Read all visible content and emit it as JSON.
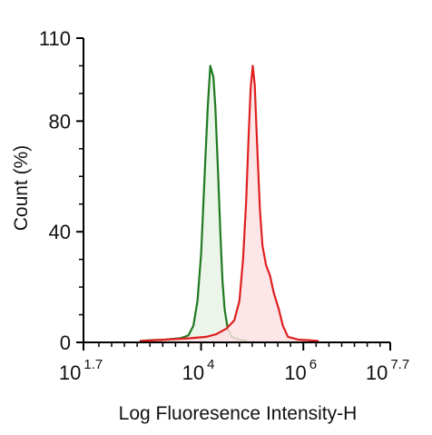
{
  "chart_data": {
    "type": "area",
    "title": "",
    "xlabel": "Log Fluoresence Intensity-H",
    "ylabel": "Count  (%)",
    "xscale": "log",
    "xlim": [
      1.7,
      7.7
    ],
    "ylim": [
      0,
      110
    ],
    "x_ticks": [
      {
        "base": "10",
        "exponent": "1.7",
        "value": 1.7
      },
      {
        "base": "10",
        "exponent": "4",
        "value": 4
      },
      {
        "base": "10",
        "exponent": "6",
        "value": 6
      },
      {
        "base": "10",
        "exponent": "7.7",
        "value": 7.7
      }
    ],
    "y_ticks": [
      {
        "label": "0",
        "value": 0
      },
      {
        "label": "40",
        "value": 40
      },
      {
        "label": "80",
        "value": 80
      },
      {
        "label": "110",
        "value": 110
      }
    ],
    "grid": false,
    "legend": "none",
    "series": [
      {
        "color": "#1f7a1f",
        "fill": "#e8f3e6",
        "x": [
          2.8,
          3.0,
          3.3,
          3.6,
          3.75,
          3.85,
          3.93,
          4.0,
          4.04,
          4.08,
          4.13,
          4.18,
          4.24,
          4.28,
          4.33,
          4.38,
          4.42,
          4.46,
          4.52,
          4.6,
          4.75,
          4.9
        ],
        "y": [
          0.5,
          0.8,
          1.0,
          1.5,
          2.5,
          6,
          15,
          32,
          48,
          65,
          85,
          100,
          96,
          85,
          62,
          38,
          22,
          12,
          5,
          2,
          1,
          0.5
        ]
      },
      {
        "color": "#e01f1f",
        "fill": "#fbe2e4",
        "x": [
          2.8,
          3.3,
          3.8,
          4.1,
          4.3,
          4.5,
          4.65,
          4.75,
          4.82,
          4.88,
          4.93,
          4.97,
          5.01,
          5.05,
          5.1,
          5.15,
          5.2,
          5.27,
          5.35,
          5.42,
          5.52,
          5.6,
          5.7,
          5.8,
          5.9,
          6.1,
          6.3
        ],
        "y": [
          0.5,
          1,
          1.5,
          2,
          3,
          5,
          8,
          15,
          30,
          50,
          75,
          92,
          100,
          93,
          70,
          48,
          35,
          28,
          24,
          18,
          12,
          6,
          2,
          1.5,
          1,
          0.8,
          0.5
        ]
      }
    ]
  }
}
